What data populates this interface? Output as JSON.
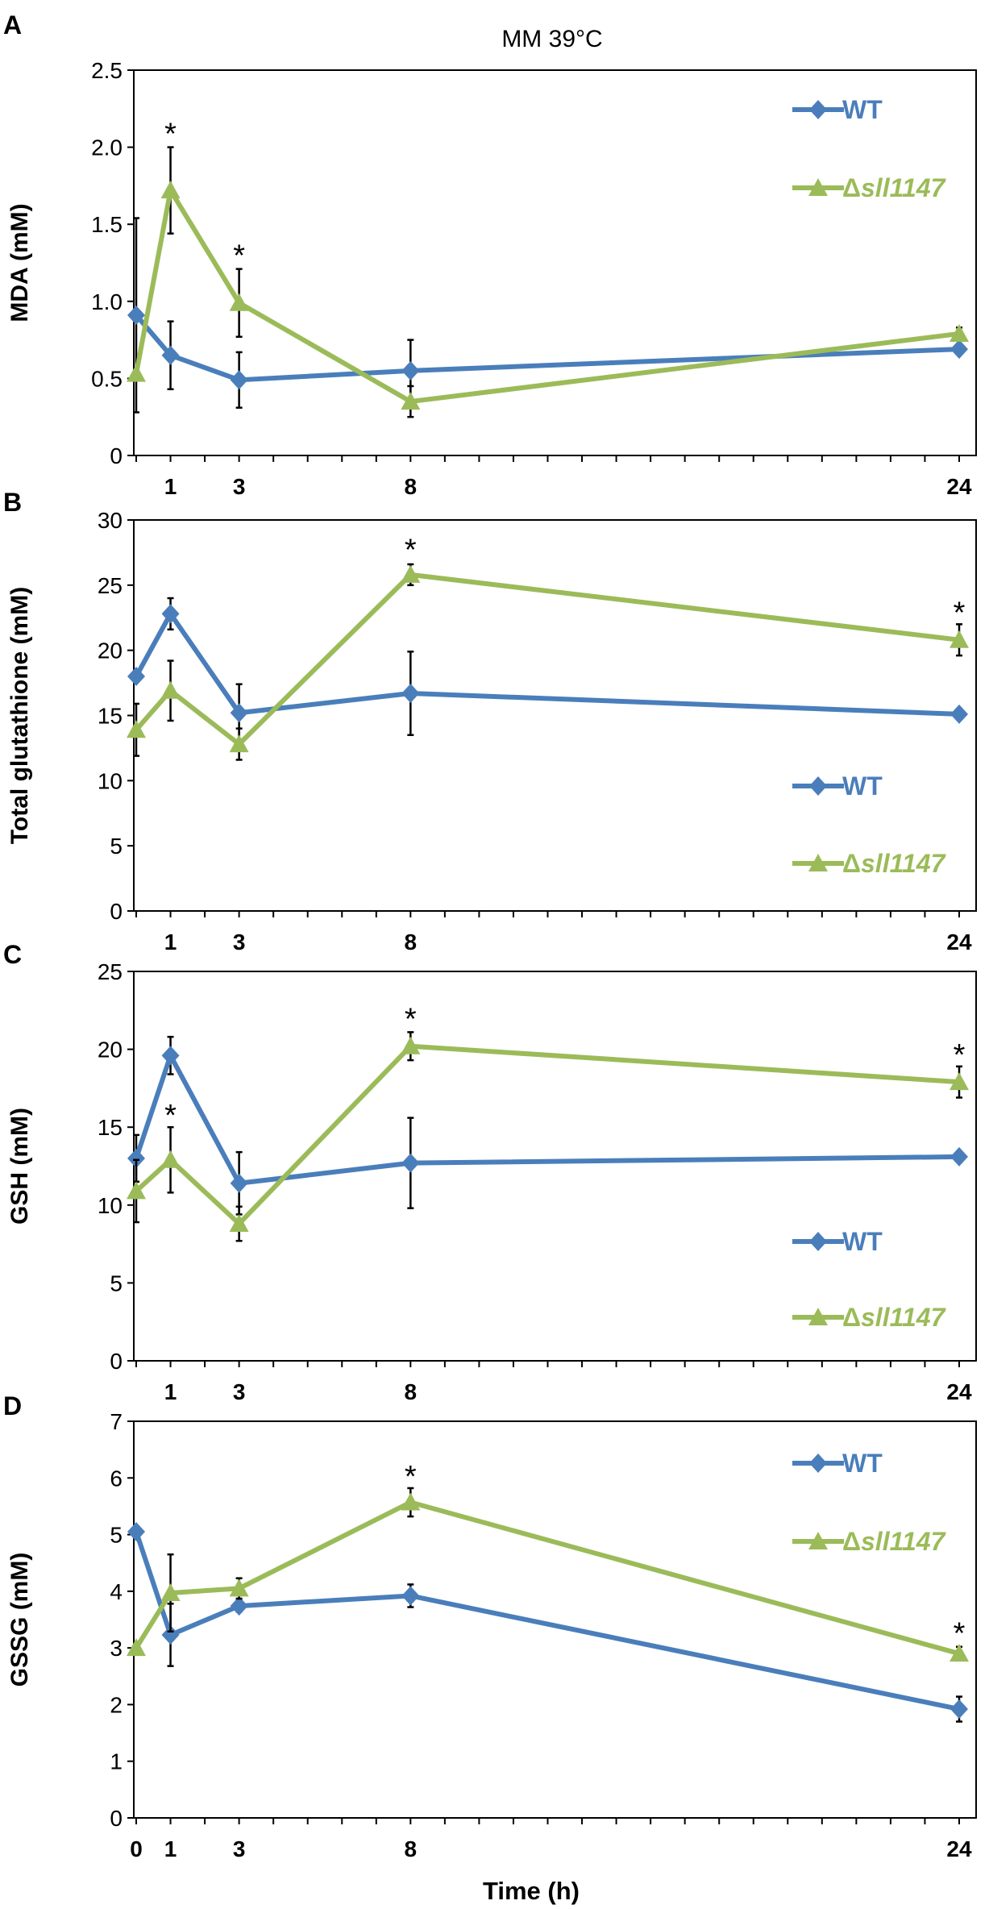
{
  "figure": {
    "title": "MM 39°C",
    "xlabel": "Time (h)"
  },
  "colors": {
    "wt": "#4a7ebb",
    "mut": "#9bbb59",
    "axis": "#000000"
  },
  "chart_data": [
    {
      "panel": "A",
      "type": "line",
      "ylabel": "MDA (mM)",
      "ylim": [
        0,
        2.5
      ],
      "yticks": [
        "0",
        "0.5",
        "1.0",
        "1.5",
        "2.0",
        "2.5"
      ],
      "ystep": 0.5,
      "xticks": [
        "1",
        "3",
        "8",
        "24"
      ],
      "xtick_values": [
        1,
        3,
        8,
        24
      ],
      "x": [
        0,
        1,
        3,
        8,
        24
      ],
      "series": [
        {
          "name": "WT",
          "marker": "diamond",
          "values": [
            0.91,
            0.65,
            0.49,
            0.55,
            0.69
          ],
          "err": [
            0.63,
            0.22,
            0.18,
            0.2,
            0.03
          ]
        },
        {
          "name": "Δsll1147",
          "name_prefix": "Δ",
          "name_italic": "sll1147",
          "marker": "triangle",
          "values": [
            0.53,
            1.72,
            0.99,
            0.35,
            0.79
          ],
          "err": [
            0.0,
            0.28,
            0.22,
            0.1,
            0.04
          ]
        }
      ],
      "annotations": [
        {
          "x": 1,
          "y": 2.01,
          "text": "*"
        },
        {
          "x": 3,
          "y": 1.22,
          "text": "*"
        }
      ],
      "legend_position": "top-right"
    },
    {
      "panel": "B",
      "type": "line",
      "ylabel": "Total glutathione (mM)",
      "ylim": [
        0,
        30
      ],
      "yticks": [
        "0",
        "5",
        "10",
        "15",
        "20",
        "25",
        "30"
      ],
      "ystep": 5,
      "xticks": [
        "1",
        "3",
        "8",
        "24"
      ],
      "xtick_values": [
        1,
        3,
        8,
        24
      ],
      "x": [
        0,
        1,
        3,
        8,
        24
      ],
      "series": [
        {
          "name": "WT",
          "marker": "diamond",
          "values": [
            18.0,
            22.8,
            15.2,
            16.7,
            15.1
          ],
          "err": [
            0.0,
            1.2,
            2.2,
            3.2,
            0.3
          ]
        },
        {
          "name": "Δsll1147",
          "name_prefix": "Δ",
          "name_italic": "sll1147",
          "marker": "triangle",
          "values": [
            13.9,
            16.9,
            12.8,
            25.8,
            20.8
          ],
          "err": [
            2.0,
            2.3,
            1.2,
            0.8,
            1.2
          ]
        }
      ],
      "annotations": [
        {
          "x": 8,
          "y": 26.8,
          "text": "*"
        },
        {
          "x": 24,
          "y": 22.0,
          "text": "*"
        }
      ],
      "legend_position": "bottom-right"
    },
    {
      "panel": "C",
      "type": "line",
      "ylabel": "GSH (mM)",
      "ylim": [
        0,
        25
      ],
      "yticks": [
        "0",
        "5",
        "10",
        "15",
        "20",
        "25"
      ],
      "ystep": 5,
      "xticks": [
        "1",
        "3",
        "8",
        "24"
      ],
      "xtick_values": [
        1,
        3,
        8,
        24
      ],
      "x": [
        0,
        1,
        3,
        8,
        24
      ],
      "series": [
        {
          "name": "WT",
          "marker": "diamond",
          "values": [
            13.0,
            19.6,
            11.4,
            12.7,
            13.1
          ],
          "err": [
            1.5,
            1.2,
            2.0,
            2.9,
            0.2
          ]
        },
        {
          "name": "Δsll1147",
          "name_prefix": "Δ",
          "name_italic": "sll1147",
          "marker": "triangle",
          "values": [
            10.9,
            12.9,
            8.8,
            20.2,
            17.9
          ],
          "err": [
            2.0,
            2.1,
            1.1,
            0.9,
            1.0
          ]
        }
      ],
      "annotations": [
        {
          "x": 1,
          "y": 15.0,
          "text": "*"
        },
        {
          "x": 8,
          "y": 21.2,
          "text": "*"
        },
        {
          "x": 24,
          "y": 18.9,
          "text": "*"
        }
      ],
      "legend_position": "bottom-right"
    },
    {
      "panel": "D",
      "type": "line",
      "ylabel": "GSSG (mM)",
      "ylim": [
        0,
        7
      ],
      "yticks": [
        "0",
        "1",
        "2",
        "3",
        "4",
        "5",
        "6",
        "7"
      ],
      "ystep": 1,
      "xticks": [
        "0",
        "1",
        "3",
        "8",
        "24"
      ],
      "xtick_values": [
        0,
        1,
        3,
        8,
        24
      ],
      "x": [
        0,
        1,
        3,
        8,
        24
      ],
      "series": [
        {
          "name": "WT",
          "marker": "diamond",
          "values": [
            5.05,
            3.23,
            3.74,
            3.92,
            1.92
          ],
          "err": [
            0.0,
            0.55,
            0.1,
            0.2,
            0.22
          ]
        },
        {
          "name": "Δsll1147",
          "name_prefix": "Δ",
          "name_italic": "sll1147",
          "marker": "triangle",
          "values": [
            3.0,
            3.97,
            4.05,
            5.57,
            2.9
          ],
          "err": [
            0.0,
            0.68,
            0.18,
            0.25,
            0.12
          ]
        }
      ],
      "annotations": [
        {
          "x": 8,
          "y": 5.82,
          "text": "*"
        },
        {
          "x": 24,
          "y": 3.05,
          "text": "*"
        }
      ],
      "legend_position": "top-right"
    }
  ]
}
